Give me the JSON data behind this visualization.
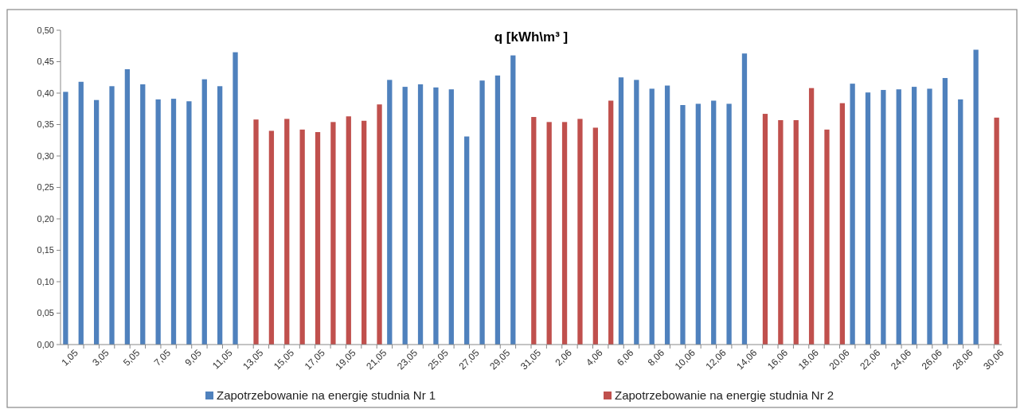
{
  "chart_data": {
    "type": "bar",
    "title": "q [kWh\\m³ ]",
    "categories": [
      "1,05",
      null,
      "3,05",
      null,
      "5,05",
      null,
      "7,05",
      null,
      "9,05",
      null,
      "11,05",
      null,
      "13,05",
      null,
      "15,05",
      null,
      "17,05",
      null,
      "19,05",
      null,
      "21,05",
      null,
      "23,05",
      null,
      "25,05",
      null,
      "27,05",
      null,
      "29,05",
      null,
      "31,05",
      null,
      "2,06",
      null,
      "4,06",
      null,
      "6,06",
      null,
      "8,06",
      null,
      "10,06",
      null,
      "12,06",
      null,
      "14,06",
      null,
      "16,06",
      null,
      "18,06",
      null,
      "20,06",
      null,
      "22,06",
      null,
      "24,06",
      null,
      "26,06",
      null,
      "28,06",
      null,
      "30,06"
    ],
    "series": [
      {
        "name": "Zapotrzebowanie na energię studnia Nr 1",
        "color": "#4f81bd",
        "values": [
          0.402,
          0.418,
          0.389,
          0.411,
          0.438,
          0.414,
          0.39,
          0.391,
          0.387,
          0.422,
          0.411,
          0.465,
          null,
          null,
          null,
          null,
          null,
          null,
          null,
          null,
          null,
          0.421,
          0.41,
          0.414,
          0.409,
          0.406,
          0.331,
          0.42,
          0.428,
          0.46,
          null,
          null,
          null,
          null,
          null,
          null,
          0.425,
          0.421,
          0.407,
          0.412,
          0.381,
          0.383,
          0.388,
          0.383,
          0.463,
          null,
          null,
          null,
          null,
          null,
          null,
          0.415,
          0.401,
          0.405,
          0.406,
          0.41,
          0.407,
          0.424,
          0.39,
          0.469,
          null
        ]
      },
      {
        "name": "Zapotrzebowanie na energię studnia Nr 2",
        "color": "#c0504d",
        "values": [
          null,
          null,
          null,
          null,
          null,
          null,
          null,
          null,
          null,
          null,
          null,
          null,
          0.358,
          0.34,
          0.359,
          0.342,
          0.338,
          0.354,
          0.363,
          0.356,
          0.382,
          null,
          null,
          null,
          null,
          null,
          null,
          null,
          null,
          null,
          0.362,
          0.354,
          0.354,
          0.359,
          0.345,
          0.388,
          null,
          null,
          null,
          null,
          null,
          null,
          null,
          null,
          null,
          0.367,
          0.357,
          0.357,
          0.408,
          0.342,
          0.384,
          null,
          null,
          null,
          null,
          null,
          null,
          null,
          null,
          null,
          0.361
        ]
      }
    ],
    "ylim": [
      0,
      0.5
    ],
    "yticks": [
      {
        "value": 0,
        "label": "0,00"
      },
      {
        "value": 0.05,
        "label": "0,05"
      },
      {
        "value": 0.1,
        "label": "0,10"
      },
      {
        "value": 0.15,
        "label": "0,15"
      },
      {
        "value": 0.2,
        "label": "0,20"
      },
      {
        "value": 0.25,
        "label": "0,25"
      },
      {
        "value": 0.3,
        "label": "0,30"
      },
      {
        "value": 0.35,
        "label": "0,35"
      },
      {
        "value": 0.4,
        "label": "0,40"
      },
      {
        "value": 0.45,
        "label": "0,45"
      },
      {
        "value": 0.5,
        "label": "0,50"
      }
    ],
    "grid": false,
    "legend": "bottom"
  }
}
